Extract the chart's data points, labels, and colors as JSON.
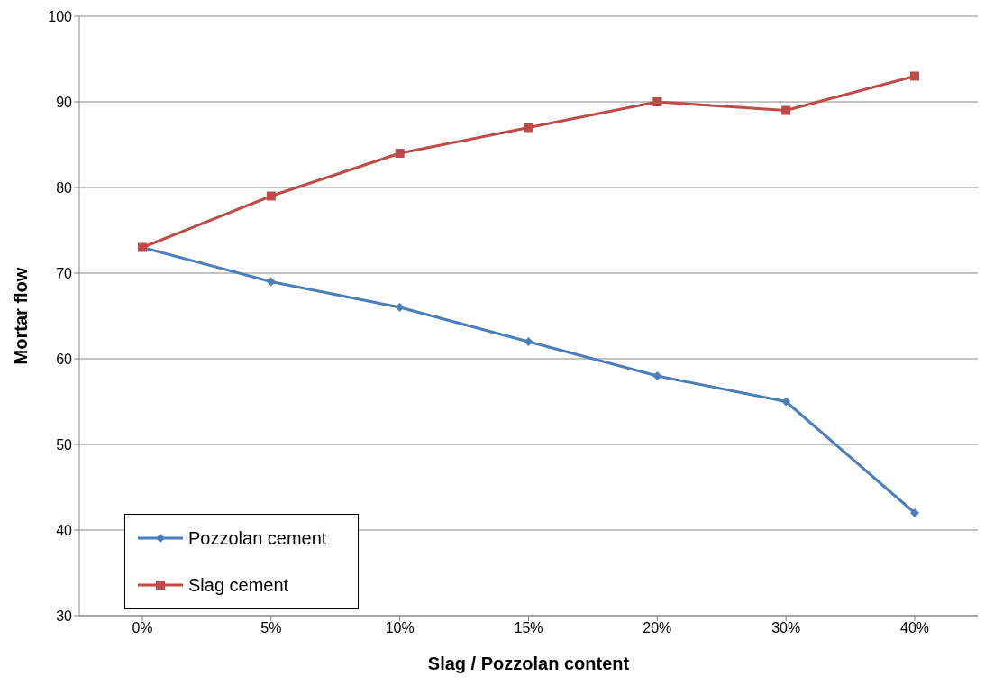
{
  "chart_data": {
    "type": "line",
    "xlabel": "Slag / Pozzolan content",
    "ylabel": "Mortar flow",
    "categories": [
      "0%",
      "5%",
      "10%",
      "15%",
      "20%",
      "30%",
      "40%"
    ],
    "series": [
      {
        "name": "Pozzolan cement",
        "color": "#4a7ebb",
        "marker": "diamond",
        "values": [
          73,
          69,
          66,
          62,
          58,
          55,
          42
        ]
      },
      {
        "name": "Slag cement",
        "color": "#be4b48",
        "marker": "square",
        "values": [
          73,
          79,
          84,
          87,
          90,
          89,
          93
        ]
      }
    ],
    "ylim": [
      30,
      100
    ],
    "yticks": [
      30,
      40,
      50,
      60,
      70,
      80,
      90,
      100
    ],
    "grid": "y",
    "legend": "bottom left",
    "line_style": "solid"
  }
}
